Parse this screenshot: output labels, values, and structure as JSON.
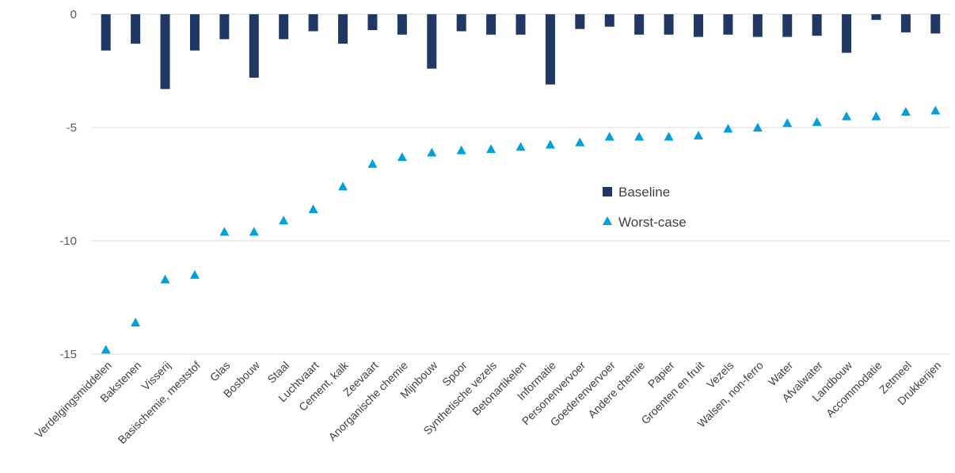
{
  "chart_data": {
    "type": "bar",
    "categories": [
      "Verdelgingsmiddelen",
      "Bakstenen",
      "Visserij",
      "Basischemie, meststof",
      "Glas",
      "Bosbouw",
      "Staal",
      "Luchtvaart",
      "Cement, kalk",
      "Zeevaart",
      "Anorganische chemie",
      "Mijnbouw",
      "Spoor",
      "Synthetische vezels",
      "Betonartikelen",
      "Informatie",
      "Personenvervoer",
      "Goederenvervoer",
      "Andere chemie",
      "Papier",
      "Groenten en fruit",
      "Vezels",
      "Walsen, non-ferro",
      "Water",
      "Afvalwater",
      "Landbouw",
      "Accommodatie",
      "Zetmeel",
      "Drukkerijen"
    ],
    "series": [
      {
        "name": "Baseline",
        "type": "bar",
        "color": "#203864",
        "values": [
          -1.6,
          -1.3,
          -3.3,
          -1.6,
          -1.1,
          -2.8,
          -1.1,
          -0.75,
          -1.3,
          -0.7,
          -0.9,
          -2.4,
          -0.75,
          -0.9,
          -0.9,
          -3.1,
          -0.65,
          -0.55,
          -0.9,
          -0.9,
          -1.0,
          -0.9,
          -1.0,
          -1.0,
          -0.95,
          -1.7,
          -0.25,
          -0.8,
          -0.85
        ]
      },
      {
        "name": "Worst-case",
        "type": "scatter",
        "marker": "triangle",
        "color": "#00a0dc",
        "values": [
          -14.8,
          -13.6,
          -11.7,
          -11.5,
          -9.6,
          -9.6,
          -9.1,
          -8.6,
          -7.6,
          -6.6,
          -6.3,
          -6.1,
          -6.0,
          -5.95,
          -5.85,
          -5.75,
          -5.65,
          -5.4,
          -5.4,
          -5.4,
          -5.35,
          -5.05,
          -5.0,
          -4.8,
          -4.75,
          -4.5,
          -4.5,
          -4.3,
          -4.25
        ]
      }
    ],
    "y_ticks": [
      "0",
      "-5",
      "-10",
      "-15"
    ],
    "ylim": [
      -15,
      0
    ],
    "grid": true,
    "legend_position": "center-right"
  }
}
